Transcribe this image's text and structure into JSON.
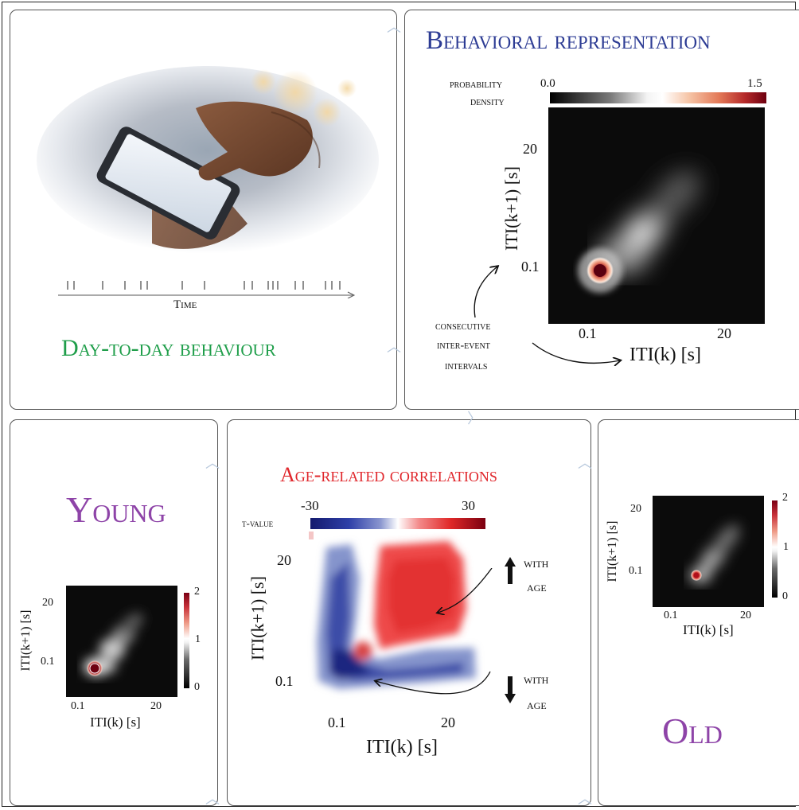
{
  "panels": {
    "daily": {
      "title": "Day-to-day behaviour",
      "time_label": "Time"
    },
    "behavioral": {
      "title": "Behavioral representation",
      "colorbar_label_line1": "probability",
      "colorbar_label_line2": "density",
      "colorbar_min": "0.0",
      "colorbar_max": "1.5",
      "y_tick_top": "20",
      "y_tick_bottom": "0.1",
      "x_tick_left": "0.1",
      "x_tick_right": "20",
      "ylabel": "ITI(k+1) [s]",
      "xlabel": "ITI(k) [s]",
      "annotation_line1": "consecutive",
      "annotation_line2": "inter-event",
      "annotation_line3": "intervals"
    },
    "young": {
      "title": "Young",
      "colorbar_max": "2",
      "colorbar_mid": "1",
      "colorbar_min": "0",
      "y_tick_top": "20",
      "y_tick_bottom": "0.1",
      "x_tick_left": "0.1",
      "x_tick_right": "20",
      "ylabel": "ITI(k+1) [s]",
      "xlabel": "ITI(k) [s]"
    },
    "age": {
      "title": "Age-related correlations",
      "colorbar_label": "t-value",
      "colorbar_min": "-30",
      "colorbar_max": "30",
      "y_tick_top": "20",
      "y_tick_bottom": "0.1",
      "x_tick_left": "0.1",
      "x_tick_right": "20",
      "ylabel": "ITI(k+1) [s]",
      "xlabel": "ITI(k) [s]",
      "up_line1": "with",
      "up_line2": "age",
      "down_line1": "with",
      "down_line2": "age"
    },
    "old": {
      "title": "Old",
      "colorbar_max": "2",
      "colorbar_mid": "1",
      "colorbar_min": "0",
      "y_tick_top": "20",
      "y_tick_bottom": "0.1",
      "x_tick_left": "0.1",
      "x_tick_right": "20",
      "ylabel": "ITI(k+1) [s]",
      "xlabel": "ITI(k) [s]"
    }
  },
  "colors": {
    "green_title": "#1f9e4a",
    "navy_title": "#2d3c94",
    "red_title": "#e0262b",
    "purple_title": "#8e44a8",
    "positive": "#e03030",
    "negative": "#2a3f9e",
    "connector": "#b8c9dd"
  },
  "icons": {
    "up_arrow": "arrow-up-icon",
    "down_arrow": "arrow-down-icon",
    "connector": "chevron-connector-icon",
    "phone": "smartphone-hand-icon"
  }
}
